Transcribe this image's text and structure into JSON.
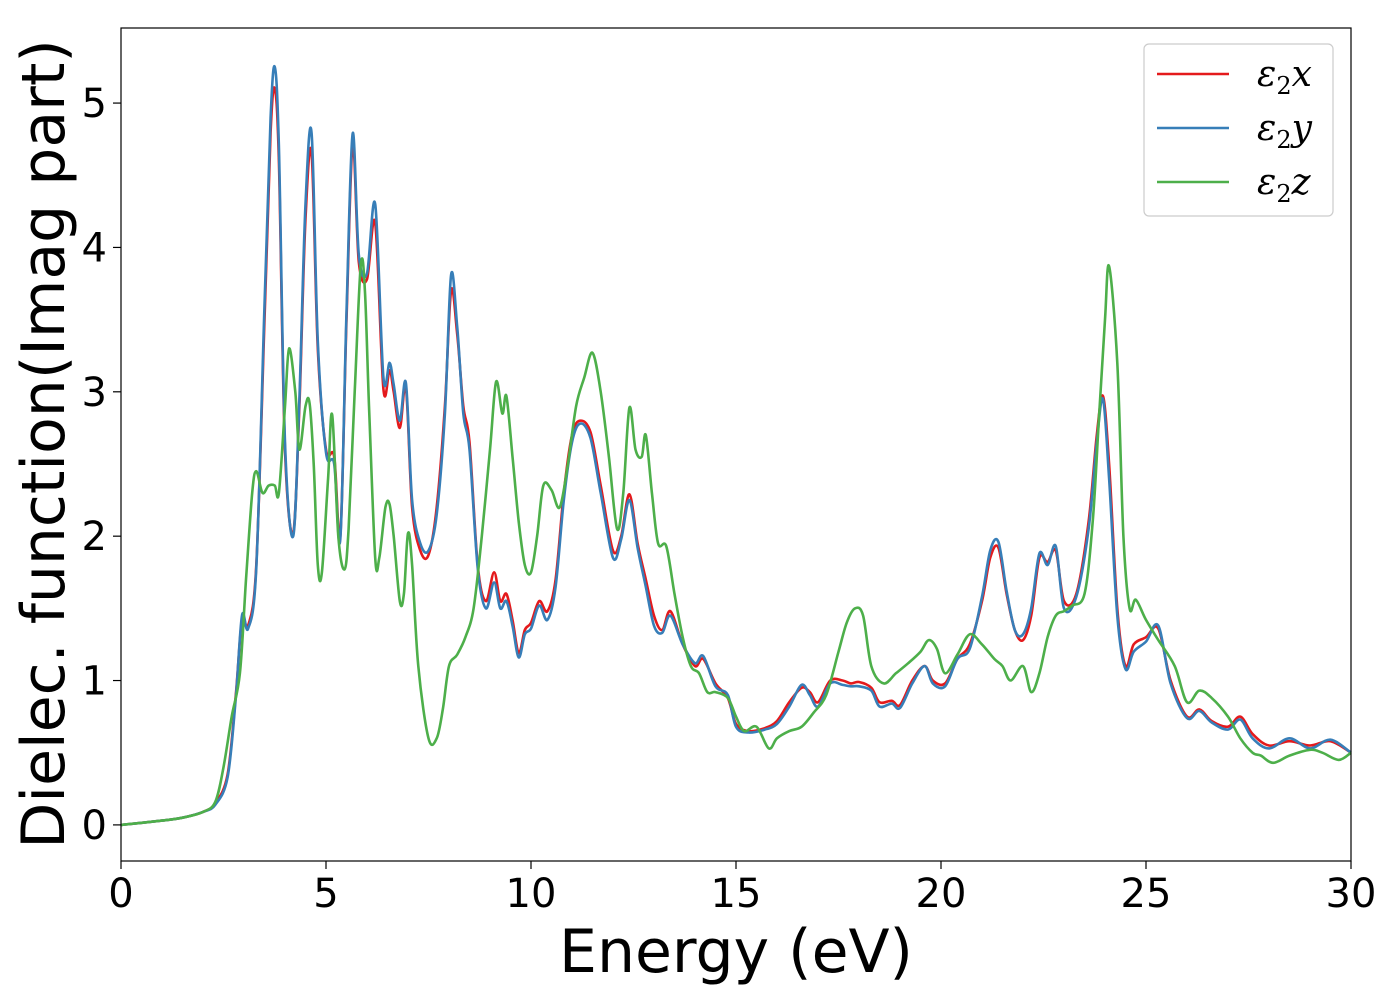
{
  "chart_data": {
    "type": "line",
    "title": "",
    "xlabel": "Energy (eV)",
    "ylabel": "Dielec. function(Imag part)",
    "xlim": [
      0,
      30
    ],
    "ylim": [
      -0.25,
      5.52
    ],
    "xticks": [
      0,
      5,
      10,
      15,
      20,
      25,
      30
    ],
    "yticks": [
      0,
      1,
      2,
      3,
      4,
      5
    ],
    "grid": false,
    "legend_position": "top-right",
    "series": [
      {
        "name": "ε₂x",
        "legend": {
          "base": "ε",
          "sub": "2",
          "var": "x"
        },
        "color": "#e41a1c",
        "x": [
          0,
          1,
          1.5,
          2,
          2.3,
          2.6,
          2.8,
          2.95,
          3.1,
          3.3,
          3.5,
          3.65,
          3.75,
          3.85,
          4.0,
          4.2,
          4.35,
          4.5,
          4.65,
          4.8,
          5.0,
          5.2,
          5.35,
          5.5,
          5.65,
          5.8,
          6.0,
          6.2,
          6.4,
          6.55,
          6.65,
          6.8,
          6.95,
          7.1,
          7.3,
          7.5,
          7.7,
          7.9,
          8.05,
          8.2,
          8.35,
          8.5,
          8.7,
          8.9,
          9.1,
          9.25,
          9.4,
          9.55,
          9.7,
          9.85,
          10.0,
          10.2,
          10.4,
          10.6,
          10.8,
          11.0,
          11.2,
          11.45,
          11.7,
          12.0,
          12.2,
          12.4,
          12.6,
          12.8,
          13.0,
          13.2,
          13.4,
          13.7,
          14.0,
          14.2,
          14.5,
          14.8,
          15.0,
          15.3,
          15.7,
          16.0,
          16.3,
          16.6,
          16.8,
          17.0,
          17.3,
          17.6,
          17.8,
          18.0,
          18.3,
          18.5,
          18.8,
          19.0,
          19.3,
          19.6,
          19.8,
          20.1,
          20.4,
          20.7,
          21.0,
          21.2,
          21.4,
          21.6,
          21.8,
          22.0,
          22.2,
          22.4,
          22.6,
          22.8,
          23.0,
          23.3,
          23.6,
          23.8,
          23.95,
          24.1,
          24.3,
          24.5,
          24.7,
          25.0,
          25.3,
          25.6,
          26.0,
          26.3,
          26.6,
          27.0,
          27.3,
          27.6,
          28.0,
          28.5,
          29.0,
          29.5,
          30
        ],
        "y": [
          0,
          0.03,
          0.05,
          0.09,
          0.15,
          0.35,
          0.9,
          1.42,
          1.38,
          1.8,
          3.5,
          4.8,
          5.1,
          4.6,
          2.6,
          2.02,
          2.9,
          4.2,
          4.65,
          3.3,
          2.6,
          2.55,
          2.0,
          3.5,
          4.72,
          3.9,
          3.78,
          4.17,
          3.02,
          3.15,
          3.0,
          2.75,
          3.03,
          2.2,
          1.9,
          1.87,
          2.2,
          2.9,
          3.7,
          3.4,
          2.9,
          2.65,
          1.8,
          1.55,
          1.75,
          1.55,
          1.6,
          1.42,
          1.19,
          1.35,
          1.4,
          1.55,
          1.48,
          1.7,
          2.3,
          2.7,
          2.8,
          2.72,
          2.35,
          1.9,
          2.0,
          2.29,
          1.95,
          1.7,
          1.45,
          1.35,
          1.48,
          1.25,
          1.1,
          1.15,
          0.98,
          0.88,
          0.7,
          0.65,
          0.67,
          0.72,
          0.85,
          0.95,
          0.92,
          0.85,
          1.0,
          1.0,
          0.98,
          0.99,
          0.95,
          0.85,
          0.86,
          0.83,
          1.0,
          1.1,
          1.0,
          0.98,
          1.15,
          1.25,
          1.55,
          1.85,
          1.92,
          1.6,
          1.35,
          1.28,
          1.45,
          1.85,
          1.82,
          1.9,
          1.55,
          1.6,
          2.1,
          2.7,
          2.97,
          2.5,
          1.5,
          1.1,
          1.25,
          1.3,
          1.36,
          1.0,
          0.75,
          0.8,
          0.72,
          0.68,
          0.75,
          0.63,
          0.55,
          0.58,
          0.55,
          0.58,
          0.5
        ]
      },
      {
        "name": "ε₂y",
        "legend": {
          "base": "ε",
          "sub": "2",
          "var": "y"
        },
        "color": "#377eb8",
        "x": [
          0,
          1,
          1.5,
          2,
          2.3,
          2.6,
          2.8,
          2.95,
          3.1,
          3.3,
          3.5,
          3.65,
          3.75,
          3.85,
          4.0,
          4.2,
          4.35,
          4.5,
          4.65,
          4.8,
          5.0,
          5.2,
          5.35,
          5.5,
          5.65,
          5.8,
          6.0,
          6.2,
          6.4,
          6.55,
          6.65,
          6.8,
          6.95,
          7.1,
          7.3,
          7.5,
          7.7,
          7.9,
          8.05,
          8.2,
          8.35,
          8.5,
          8.7,
          8.9,
          9.1,
          9.25,
          9.4,
          9.55,
          9.7,
          9.85,
          10.0,
          10.2,
          10.4,
          10.6,
          10.8,
          11.0,
          11.2,
          11.45,
          11.7,
          12.0,
          12.2,
          12.4,
          12.6,
          12.8,
          13.0,
          13.2,
          13.4,
          13.7,
          14.0,
          14.2,
          14.5,
          14.8,
          15.0,
          15.3,
          15.7,
          16.0,
          16.3,
          16.6,
          16.8,
          17.0,
          17.3,
          17.6,
          17.8,
          18.0,
          18.3,
          18.5,
          18.8,
          19.0,
          19.3,
          19.6,
          19.8,
          20.1,
          20.4,
          20.7,
          21.0,
          21.2,
          21.4,
          21.6,
          21.8,
          22.0,
          22.2,
          22.4,
          22.6,
          22.8,
          23.0,
          23.3,
          23.6,
          23.8,
          23.95,
          24.1,
          24.3,
          24.5,
          24.7,
          25.0,
          25.3,
          25.6,
          26.0,
          26.3,
          26.6,
          27.0,
          27.3,
          27.6,
          28.0,
          28.5,
          29.0,
          29.5,
          30
        ],
        "y": [
          0,
          0.03,
          0.05,
          0.09,
          0.14,
          0.33,
          0.88,
          1.45,
          1.36,
          1.78,
          3.6,
          4.9,
          5.25,
          4.7,
          2.65,
          2.0,
          2.95,
          4.3,
          4.79,
          3.35,
          2.58,
          2.5,
          1.98,
          3.55,
          4.79,
          3.95,
          3.82,
          4.3,
          3.1,
          3.2,
          3.05,
          2.8,
          3.06,
          2.25,
          1.95,
          1.9,
          2.15,
          2.85,
          3.81,
          3.45,
          2.85,
          2.6,
          1.78,
          1.5,
          1.68,
          1.5,
          1.55,
          1.38,
          1.16,
          1.32,
          1.36,
          1.52,
          1.42,
          1.65,
          2.25,
          2.65,
          2.78,
          2.68,
          2.3,
          1.85,
          1.98,
          2.25,
          1.92,
          1.65,
          1.38,
          1.33,
          1.45,
          1.25,
          1.12,
          1.17,
          0.96,
          0.9,
          0.68,
          0.64,
          0.66,
          0.7,
          0.82,
          0.97,
          0.9,
          0.82,
          0.98,
          0.97,
          0.96,
          0.96,
          0.93,
          0.82,
          0.84,
          0.81,
          0.98,
          1.1,
          0.98,
          0.96,
          1.15,
          1.22,
          1.58,
          1.9,
          1.96,
          1.62,
          1.35,
          1.32,
          1.5,
          1.88,
          1.8,
          1.93,
          1.5,
          1.58,
          2.05,
          2.65,
          2.95,
          2.4,
          1.45,
          1.08,
          1.2,
          1.27,
          1.38,
          0.98,
          0.74,
          0.79,
          0.71,
          0.66,
          0.73,
          0.6,
          0.53,
          0.6,
          0.53,
          0.59,
          0.5
        ]
      },
      {
        "name": "ε₂z",
        "legend": {
          "base": "ε",
          "sub": "2",
          "var": "z"
        },
        "color": "#4daf4a",
        "x": [
          0,
          1,
          1.5,
          2,
          2.3,
          2.5,
          2.7,
          2.9,
          3.05,
          3.2,
          3.3,
          3.45,
          3.6,
          3.75,
          3.85,
          4.0,
          4.1,
          4.25,
          4.35,
          4.5,
          4.6,
          4.7,
          4.8,
          4.9,
          5.05,
          5.15,
          5.3,
          5.45,
          5.55,
          5.7,
          5.85,
          5.95,
          6.05,
          6.2,
          6.3,
          6.45,
          6.55,
          6.65,
          6.8,
          6.9,
          7.0,
          7.1,
          7.25,
          7.5,
          7.7,
          7.85,
          8.0,
          8.2,
          8.4,
          8.6,
          8.8,
          9.0,
          9.15,
          9.3,
          9.4,
          9.55,
          9.7,
          9.85,
          10.0,
          10.15,
          10.3,
          10.5,
          10.7,
          10.9,
          11.1,
          11.3,
          11.5,
          11.7,
          11.9,
          12.1,
          12.25,
          12.4,
          12.55,
          12.7,
          12.8,
          12.95,
          13.1,
          13.3,
          13.5,
          13.7,
          13.9,
          14.1,
          14.3,
          14.5,
          14.8,
          15.0,
          15.2,
          15.5,
          15.8,
          16.0,
          16.3,
          16.6,
          16.9,
          17.2,
          17.5,
          17.7,
          17.9,
          18.1,
          18.3,
          18.6,
          18.9,
          19.2,
          19.5,
          19.7,
          19.9,
          20.1,
          20.4,
          20.7,
          21.0,
          21.3,
          21.5,
          21.7,
          22.0,
          22.2,
          22.4,
          22.6,
          22.8,
          23.0,
          23.2,
          23.5,
          23.7,
          23.85,
          24.0,
          24.1,
          24.3,
          24.45,
          24.6,
          24.75,
          25.0,
          25.3,
          25.7,
          26.0,
          26.3,
          26.6,
          27.0,
          27.3,
          27.6,
          27.8,
          28.1,
          28.5,
          29.0,
          29.3,
          29.7,
          30
        ],
        "y": [
          0,
          0.03,
          0.05,
          0.09,
          0.16,
          0.4,
          0.75,
          1.05,
          1.7,
          2.3,
          2.45,
          2.3,
          2.35,
          2.35,
          2.3,
          2.9,
          3.3,
          3.0,
          2.6,
          2.9,
          2.92,
          2.5,
          1.8,
          1.75,
          2.4,
          2.84,
          2.0,
          1.77,
          2.05,
          3.0,
          3.88,
          3.7,
          2.9,
          1.85,
          1.85,
          2.2,
          2.22,
          2.0,
          1.55,
          1.6,
          2.02,
          1.8,
          1.1,
          0.6,
          0.6,
          0.8,
          1.1,
          1.18,
          1.3,
          1.5,
          2.0,
          2.6,
          3.07,
          2.85,
          2.97,
          2.55,
          2.1,
          1.8,
          1.75,
          2.0,
          2.35,
          2.32,
          2.2,
          2.5,
          2.9,
          3.1,
          3.27,
          3.0,
          2.55,
          2.05,
          2.3,
          2.89,
          2.6,
          2.55,
          2.7,
          2.3,
          1.95,
          1.93,
          1.6,
          1.3,
          1.1,
          1.05,
          0.92,
          0.92,
          0.88,
          0.75,
          0.65,
          0.68,
          0.53,
          0.6,
          0.65,
          0.68,
          0.78,
          0.9,
          1.2,
          1.4,
          1.5,
          1.45,
          1.1,
          0.98,
          1.05,
          1.12,
          1.2,
          1.28,
          1.22,
          1.05,
          1.18,
          1.32,
          1.25,
          1.15,
          1.1,
          1.0,
          1.1,
          0.92,
          1.05,
          1.3,
          1.45,
          1.48,
          1.52,
          1.6,
          2.1,
          2.8,
          3.5,
          3.87,
          3.2,
          2.0,
          1.5,
          1.56,
          1.42,
          1.28,
          1.1,
          0.85,
          0.93,
          0.88,
          0.75,
          0.6,
          0.5,
          0.48,
          0.43,
          0.48,
          0.52,
          0.5,
          0.45,
          0.5
        ]
      }
    ]
  }
}
